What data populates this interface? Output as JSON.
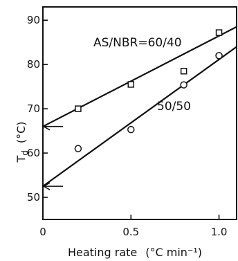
{
  "chart_data": {
    "type": "scatter",
    "title": "",
    "xlabel": "Heating rate",
    "xlabel_units": "(°C min⁻¹)",
    "ylabel_main": "T",
    "ylabel_sub": "d",
    "ylabel_units": "(°C)",
    "xlim": [
      0,
      1.1
    ],
    "ylim": [
      45,
      93
    ],
    "xticks": [
      0,
      0.5,
      1.0
    ],
    "xtick_labels": [
      "0",
      "0.5",
      "1.0"
    ],
    "yticks": [
      50,
      60,
      70,
      80,
      90
    ],
    "ytick_labels": [
      "50",
      "60",
      "70",
      "80",
      "90"
    ],
    "grid": false,
    "series": [
      {
        "name": "AS/NBR=60/40",
        "marker": "square",
        "x": [
          0.2,
          0.5,
          0.8,
          1.0
        ],
        "y": [
          70.0,
          75.5,
          78.5,
          87.2
        ],
        "fit_line": {
          "x": [
            0,
            1.1
          ],
          "y": [
            66.0,
            88.5
          ]
        },
        "extrapolated_intercept": 66.0
      },
      {
        "name": "50/50",
        "marker": "circle",
        "x": [
          0.2,
          0.5,
          0.8,
          1.0
        ],
        "y": [
          61.0,
          65.3,
          75.4,
          82.0
        ],
        "fit_line": {
          "x": [
            0,
            1.1
          ],
          "y": [
            52.5,
            84.0
          ]
        },
        "extrapolated_intercept": 52.5
      }
    ]
  }
}
